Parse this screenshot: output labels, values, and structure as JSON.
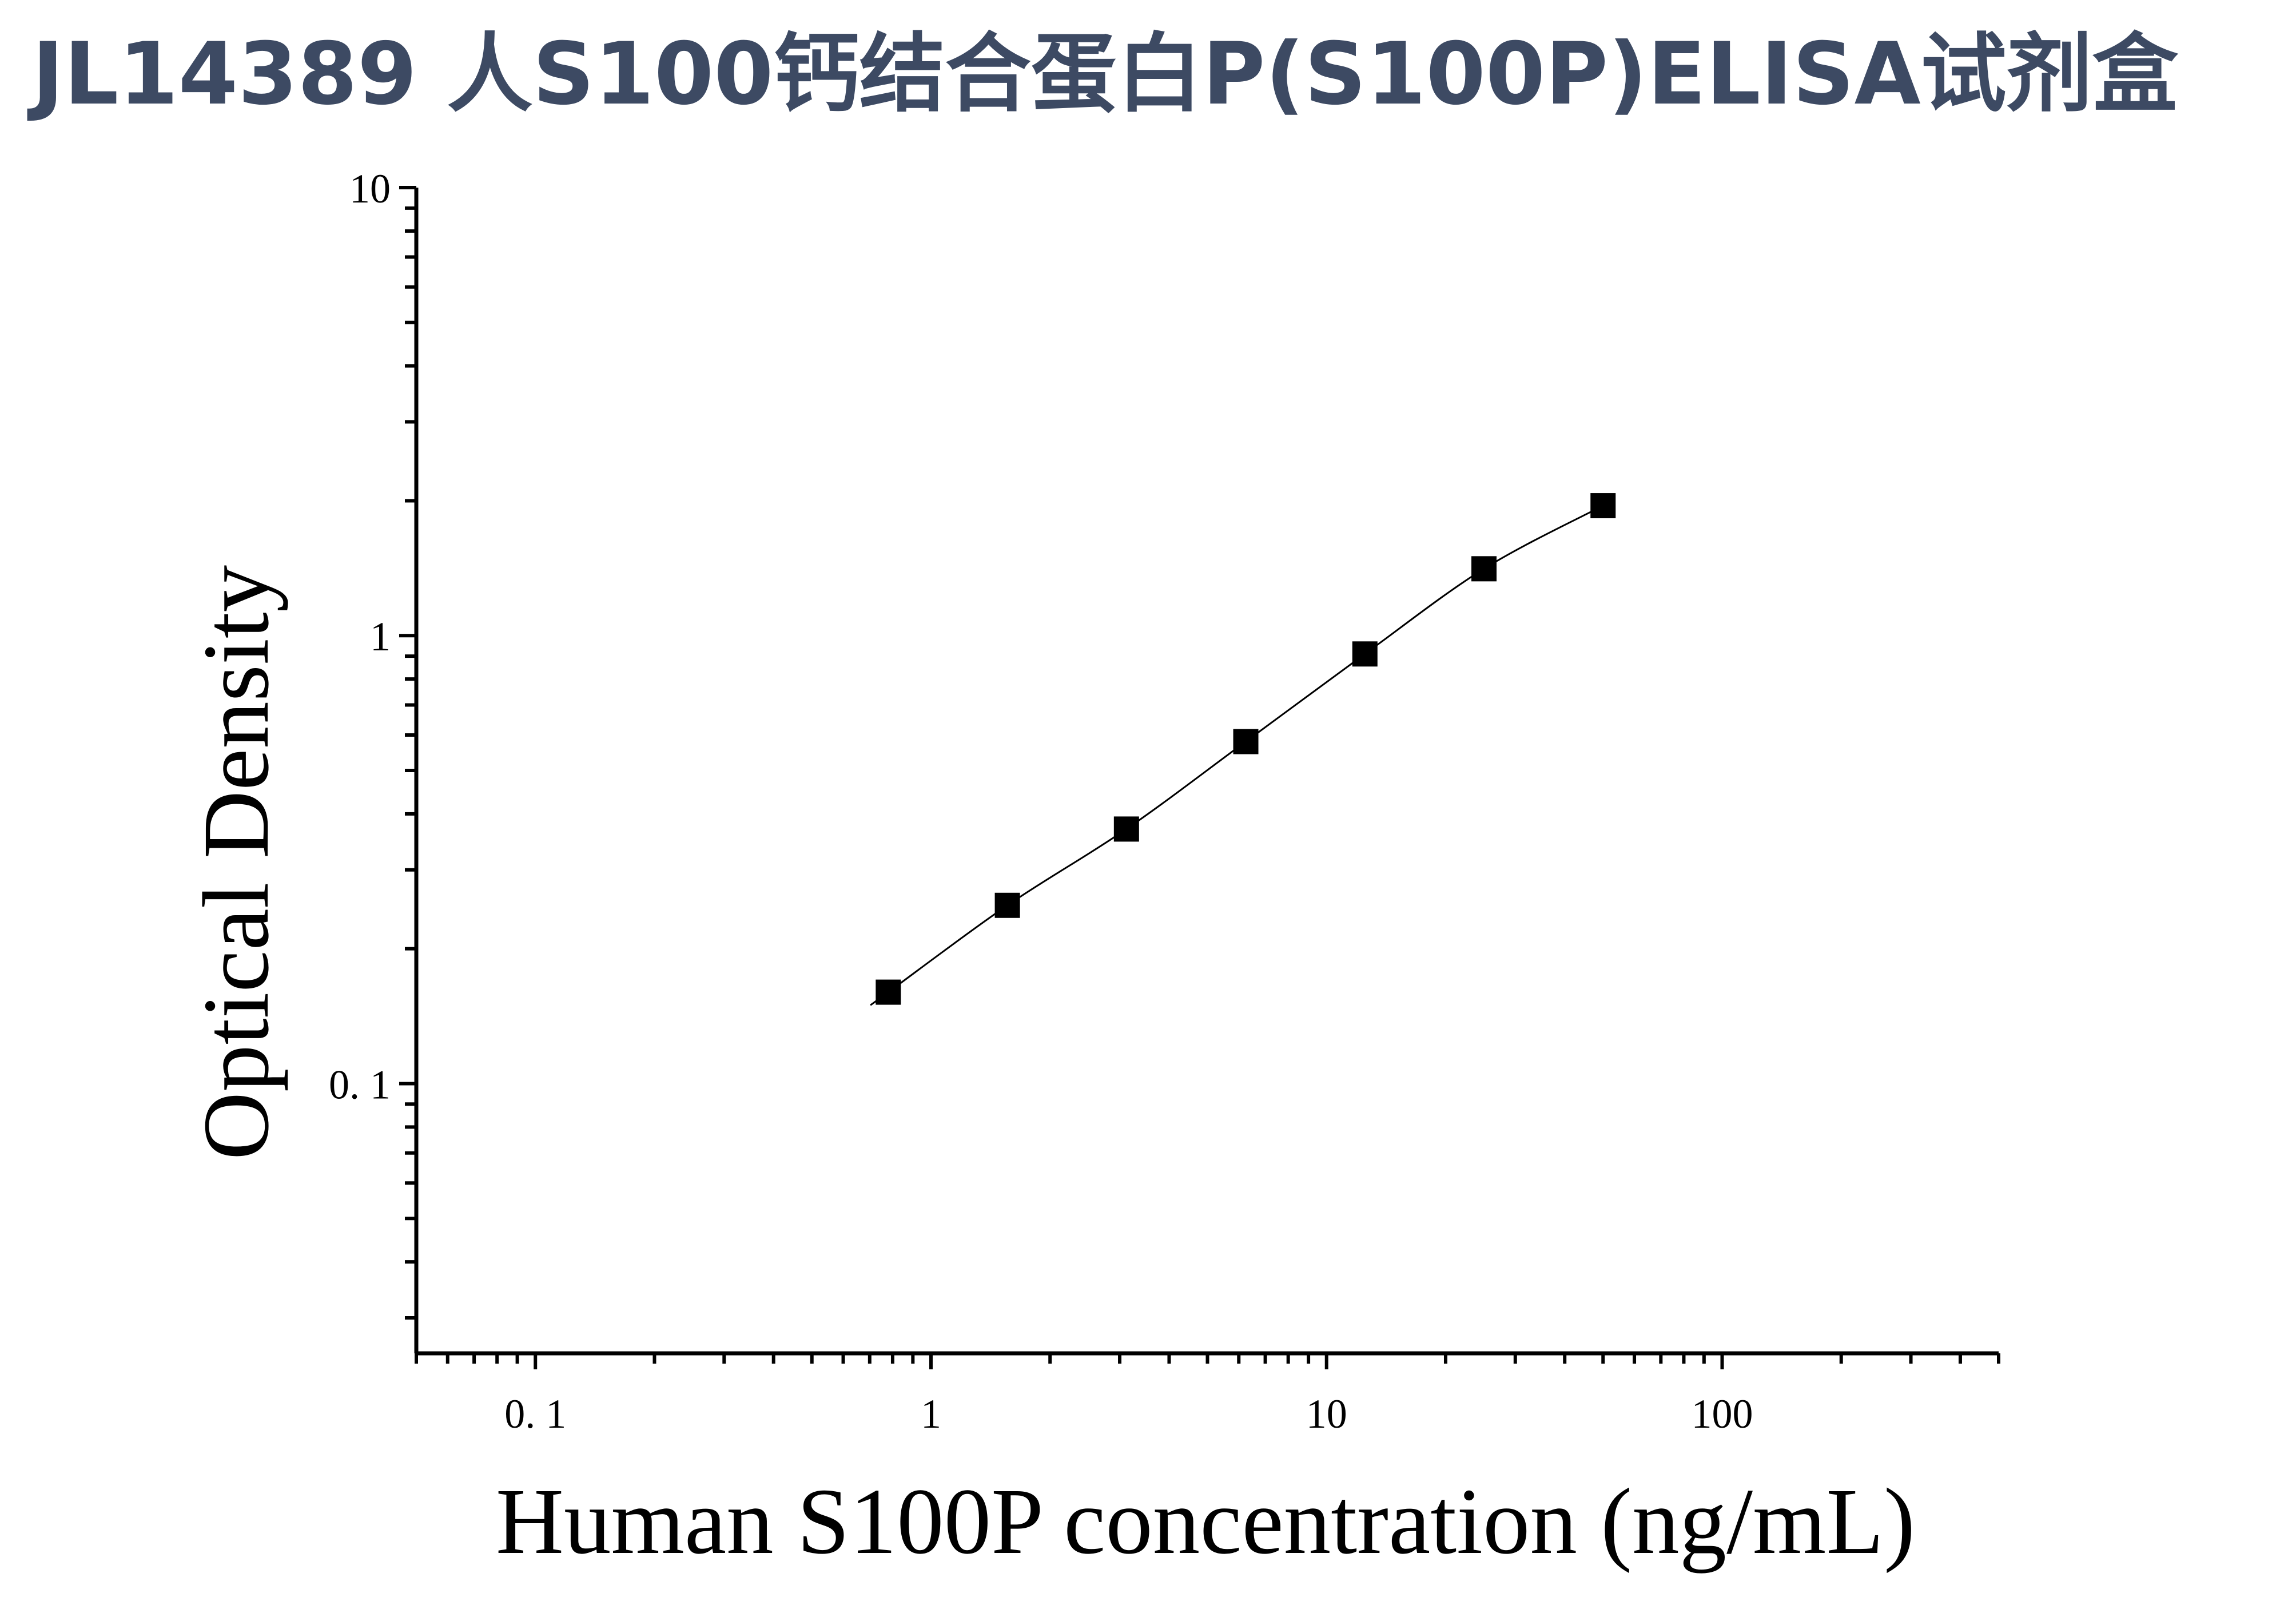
{
  "chart_data": {
    "type": "scatter",
    "title": "JL14389 人S100钙结合蛋白P(S100P)ELISA试剂盒",
    "title_color": "#3d4a63",
    "xlabel": "Human S100P concentration (ng/mL)",
    "ylabel": "Optical Density",
    "x_scale": "log",
    "y_scale": "log",
    "xlim": [
      0.05,
      500
    ],
    "ylim": [
      0.025,
      10
    ],
    "x_ticks": [
      0.1,
      1,
      10,
      100
    ],
    "x_tick_labels": [
      "0. 1",
      "1",
      "10",
      "100"
    ],
    "y_ticks": [
      0.1,
      1,
      10
    ],
    "y_tick_labels": [
      "0. 1",
      "1",
      "10"
    ],
    "grid": false,
    "legend": "none",
    "marker": "square",
    "marker_color": "#000000",
    "line_color": "#000000",
    "series": [
      {
        "x": [
          0.78,
          1.56,
          3.12,
          6.25,
          12.5,
          25,
          50
        ],
        "y": [
          0.16,
          0.25,
          0.37,
          0.58,
          0.91,
          1.41,
          1.95
        ]
      }
    ]
  }
}
